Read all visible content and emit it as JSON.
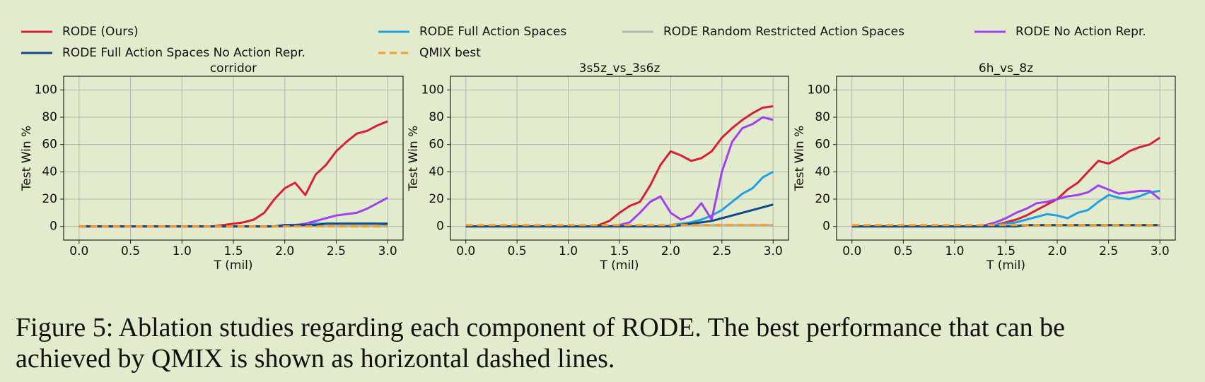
{
  "legend": [
    {
      "name": "RODE (Ours)",
      "color": "#d62035",
      "dashed": false
    },
    {
      "name": "RODE Full Action Spaces",
      "color": "#1ea0e6",
      "dashed": false
    },
    {
      "name": "RODE Random Restricted Action Spaces",
      "color": "#b5b5b5",
      "dashed": false
    },
    {
      "name": "RODE No Action Repr.",
      "color": "#a040f0",
      "dashed": false
    },
    {
      "name": "RODE Full Action Spaces No Action Repr.",
      "color": "#0d4a86",
      "dashed": false
    },
    {
      "name": "QMIX best",
      "color": "#ff9a1a",
      "dashed": true
    }
  ],
  "chart_data": [
    {
      "type": "line",
      "title": "corridor",
      "xlabel": "T (mil)",
      "ylabel": "Test Win %",
      "grid": true,
      "xlim": [
        -0.15,
        3.15
      ],
      "ylim": [
        -10,
        110
      ],
      "xticks": [
        {
          "value": 0,
          "label": "0.0"
        },
        0.5,
        {
          "value": 1,
          "label": "1.0"
        },
        1.5,
        {
          "value": 2,
          "label": "2.0"
        },
        2.5,
        {
          "value": 3,
          "label": "3.0"
        }
      ],
      "yticks": [
        0,
        20,
        40,
        60,
        80,
        100
      ],
      "x": [
        0,
        0.1,
        0.2,
        0.3,
        0.4,
        0.5,
        0.6,
        0.7,
        0.8,
        0.9,
        1,
        1.1,
        1.2,
        1.3,
        1.4,
        1.5,
        1.6,
        1.7,
        1.8,
        1.9,
        2,
        2.1,
        2.2,
        2.3,
        2.4,
        2.5,
        2.6,
        2.7,
        2.8,
        2.9,
        3
      ],
      "series": [
        {
          "values": [
            0,
            0,
            0,
            0,
            0,
            0,
            0,
            0,
            0,
            0,
            0,
            0,
            0,
            0,
            1,
            2,
            3,
            5,
            10,
            20,
            28,
            32,
            23,
            38,
            45,
            55,
            62,
            68,
            70,
            74,
            77
          ]
        },
        {
          "values": [
            0,
            0,
            0,
            0,
            0,
            0,
            0,
            0,
            0,
            0,
            0,
            0,
            0,
            0,
            0,
            0,
            0,
            0,
            0,
            0,
            1,
            1,
            2,
            2,
            2,
            2,
            2,
            2,
            2,
            2,
            1
          ]
        },
        {
          "values": [
            0,
            0,
            0,
            0,
            0,
            0,
            0,
            0,
            0,
            0,
            0,
            0,
            0,
            0,
            0,
            0,
            0,
            0,
            0,
            0,
            0,
            0,
            0,
            0,
            0,
            0,
            0,
            0,
            0,
            0,
            0
          ]
        },
        {
          "values": [
            0,
            0,
            0,
            0,
            0,
            0,
            0,
            0,
            0,
            0,
            0,
            0,
            0,
            0,
            0,
            0,
            0,
            0,
            0,
            0,
            0,
            1,
            2,
            4,
            6,
            8,
            9,
            10,
            13,
            17,
            21
          ]
        },
        {
          "values": [
            0,
            0,
            0,
            0,
            0,
            0,
            0,
            0,
            0,
            0,
            0,
            0,
            0,
            0,
            0,
            0,
            0,
            0,
            0,
            0,
            1,
            1,
            1,
            1,
            2,
            2,
            2,
            2,
            2,
            2,
            2
          ]
        },
        {
          "values": [
            0,
            0,
            0,
            0,
            0,
            0,
            0,
            0,
            0,
            0,
            0,
            0,
            0,
            0,
            0,
            0,
            0,
            0,
            0,
            0,
            0,
            0,
            0,
            0,
            0,
            0,
            0,
            0,
            0,
            0,
            0
          ]
        }
      ]
    },
    {
      "type": "line",
      "title": "3s5z_vs_3s6z",
      "xlabel": "T (mil)",
      "ylabel": "Test Win %",
      "grid": true,
      "xlim": [
        -0.15,
        3.15
      ],
      "ylim": [
        -10,
        110
      ],
      "xticks": [
        {
          "value": 0,
          "label": "0.0"
        },
        0.5,
        {
          "value": 1,
          "label": "1.0"
        },
        1.5,
        {
          "value": 2,
          "label": "2.0"
        },
        2.5,
        {
          "value": 3,
          "label": "3.0"
        }
      ],
      "yticks": [
        0,
        20,
        40,
        60,
        80,
        100
      ],
      "x": [
        0,
        0.1,
        0.2,
        0.3,
        0.4,
        0.5,
        0.6,
        0.7,
        0.8,
        0.9,
        1,
        1.1,
        1.2,
        1.3,
        1.4,
        1.5,
        1.6,
        1.7,
        1.8,
        1.9,
        2,
        2.1,
        2.2,
        2.3,
        2.4,
        2.5,
        2.6,
        2.7,
        2.8,
        2.9,
        3
      ],
      "series": [
        {
          "values": [
            0,
            0,
            0,
            0,
            0,
            0,
            0,
            0,
            0,
            0,
            0,
            0,
            0,
            1,
            4,
            10,
            15,
            18,
            30,
            45,
            55,
            52,
            48,
            50,
            55,
            65,
            72,
            78,
            83,
            87,
            88
          ]
        },
        {
          "values": [
            0,
            0,
            0,
            0,
            0,
            0,
            0,
            0,
            0,
            0,
            0,
            0,
            0,
            0,
            0,
            0,
            0,
            0,
            0,
            0,
            1,
            2,
            3,
            5,
            8,
            12,
            18,
            24,
            28,
            36,
            40
          ]
        },
        {
          "values": [
            0,
            0,
            0,
            0,
            0,
            0,
            0,
            0,
            0,
            0,
            0,
            0,
            0,
            0,
            0,
            0,
            0,
            0,
            0,
            0,
            1,
            1,
            1,
            1,
            1,
            1,
            1,
            1,
            1,
            1,
            1
          ]
        },
        {
          "values": [
            0,
            0,
            0,
            0,
            0,
            0,
            0,
            0,
            0,
            0,
            0,
            0,
            0,
            0,
            0,
            1,
            3,
            10,
            18,
            22,
            10,
            5,
            8,
            17,
            5,
            40,
            62,
            72,
            75,
            80,
            78
          ]
        },
        {
          "values": [
            0,
            0,
            0,
            0,
            0,
            0,
            0,
            0,
            0,
            0,
            0,
            0,
            0,
            0,
            0,
            0,
            0,
            0,
            0,
            0,
            0,
            1,
            2,
            3,
            4,
            6,
            8,
            10,
            12,
            14,
            16
          ]
        },
        {
          "values": [
            1,
            1,
            1,
            1,
            1,
            1,
            1,
            1,
            1,
            1,
            1,
            1,
            1,
            1,
            1,
            1,
            1,
            1,
            1,
            1,
            1,
            1,
            1,
            1,
            1,
            1,
            1,
            1,
            1,
            1,
            1
          ]
        }
      ]
    },
    {
      "type": "line",
      "title": "6h_vs_8z",
      "xlabel": "T (mil)",
      "ylabel": "Test Win %",
      "grid": true,
      "xlim": [
        -0.15,
        3.15
      ],
      "ylim": [
        -10,
        110
      ],
      "xticks": [
        {
          "value": 0,
          "label": "0.0"
        },
        0.5,
        {
          "value": 1,
          "label": "1.0"
        },
        1.5,
        {
          "value": 2,
          "label": "2.0"
        },
        2.5,
        {
          "value": 3,
          "label": "3.0"
        }
      ],
      "yticks": [
        0,
        20,
        40,
        60,
        80,
        100
      ],
      "x": [
        0,
        0.1,
        0.2,
        0.3,
        0.4,
        0.5,
        0.6,
        0.7,
        0.8,
        0.9,
        1,
        1.1,
        1.2,
        1.3,
        1.4,
        1.5,
        1.6,
        1.7,
        1.8,
        1.9,
        2,
        2.1,
        2.2,
        2.3,
        2.4,
        2.5,
        2.6,
        2.7,
        2.8,
        2.9,
        3
      ],
      "series": [
        {
          "values": [
            0,
            0,
            0,
            0,
            0,
            0,
            0,
            0,
            0,
            0,
            0,
            0,
            0,
            0,
            1,
            3,
            5,
            8,
            12,
            16,
            20,
            27,
            32,
            40,
            48,
            46,
            50,
            55,
            58,
            60,
            65
          ]
        },
        {
          "values": [
            0,
            0,
            0,
            0,
            0,
            0,
            0,
            0,
            0,
            0,
            0,
            0,
            0,
            0,
            1,
            2,
            3,
            5,
            7,
            9,
            8,
            6,
            10,
            12,
            18,
            23,
            21,
            20,
            22,
            25,
            26
          ]
        },
        {
          "values": [
            0,
            0,
            0,
            0,
            0,
            0,
            0,
            0,
            0,
            0,
            0,
            0,
            0,
            0,
            0,
            0,
            1,
            1,
            1,
            1,
            1,
            1,
            1,
            1,
            1,
            1,
            1,
            1,
            1,
            1,
            1
          ]
        },
        {
          "values": [
            0,
            0,
            0,
            0,
            0,
            0,
            0,
            0,
            0,
            0,
            0,
            0,
            0,
            1,
            3,
            6,
            10,
            13,
            17,
            18,
            20,
            22,
            23,
            25,
            30,
            27,
            24,
            25,
            26,
            26,
            20
          ]
        },
        {
          "values": [
            0,
            0,
            0,
            0,
            0,
            0,
            0,
            0,
            0,
            0,
            0,
            0,
            0,
            0,
            0,
            0,
            0,
            1,
            1,
            1,
            1,
            1,
            1,
            1,
            1,
            1,
            1,
            1,
            1,
            1,
            1
          ]
        },
        {
          "values": [
            1,
            1,
            1,
            1,
            1,
            1,
            1,
            1,
            1,
            1,
            1,
            1,
            1,
            1,
            1,
            1,
            1,
            1,
            1,
            1,
            1,
            1,
            1,
            1,
            1,
            1,
            1,
            1,
            1,
            1,
            1
          ]
        }
      ]
    }
  ],
  "caption": [
    "Figure 5:  Ablation studies regarding each component of RODE. The best performance that can be",
    "achieved by QMIX is shown as horizontal dashed lines."
  ]
}
